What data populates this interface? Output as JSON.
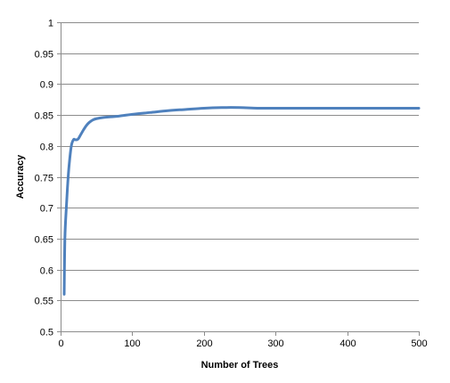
{
  "chart_data": {
    "type": "line",
    "title": "",
    "xlabel": "Number of Trees",
    "ylabel": "Accuracy",
    "xlim": [
      0,
      500
    ],
    "ylim": [
      0.5,
      1
    ],
    "x_ticks": [
      0,
      100,
      200,
      300,
      400,
      500
    ],
    "y_ticks": [
      0.5,
      0.55,
      0.6,
      0.65,
      0.7,
      0.75,
      0.8,
      0.85,
      0.9,
      0.95,
      1
    ],
    "x_tick_labels": [
      "0",
      "100",
      "200",
      "300",
      "400",
      "500"
    ],
    "y_tick_labels": [
      "0.5",
      "0.55",
      "0.6",
      "0.65",
      "0.7",
      "0.75",
      "0.8",
      "0.85",
      "0.9",
      "0.95",
      "1"
    ],
    "grid": "horizontal",
    "legend": "none",
    "series": [
      {
        "color": "#4f81bd",
        "x": [
          5,
          6,
          8,
          10,
          12,
          15,
          18,
          20,
          23,
          25,
          28,
          32,
          36,
          40,
          45,
          50,
          60,
          70,
          80,
          100,
          125,
          150,
          175,
          200,
          225,
          250,
          275,
          300,
          350,
          400,
          450,
          500
        ],
        "y": [
          0.56,
          0.65,
          0.7,
          0.74,
          0.77,
          0.8,
          0.81,
          0.81,
          0.81,
          0.812,
          0.818,
          0.826,
          0.833,
          0.838,
          0.842,
          0.844,
          0.846,
          0.847,
          0.848,
          0.851,
          0.854,
          0.857,
          0.859,
          0.861,
          0.862,
          0.862,
          0.861,
          0.861,
          0.861,
          0.861,
          0.861,
          0.861
        ]
      }
    ]
  }
}
